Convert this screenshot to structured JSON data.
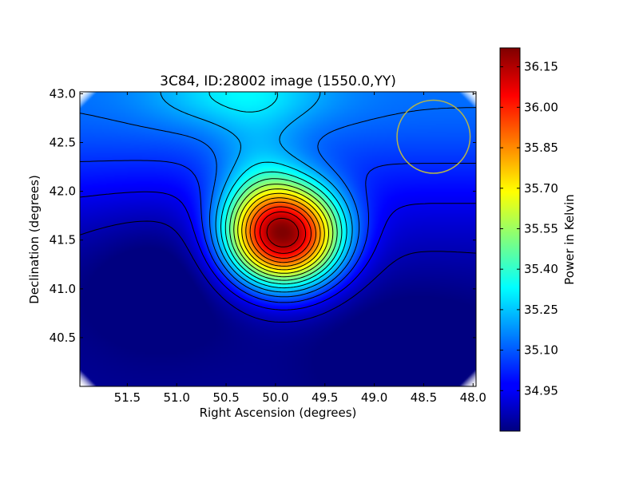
{
  "chart_data": {
    "type": "heatmap",
    "title": "3C84, ID:28002 image (1550.0,YY)",
    "xlabel": "Right Ascension (degrees)",
    "ylabel": "Declination (degrees)",
    "xlim": [
      51.98,
      47.97
    ],
    "ylim": [
      40.0,
      43.02
    ],
    "x_axis_inverted": true,
    "xticks": [
      51.5,
      51.0,
      50.5,
      50.0,
      49.5,
      49.0,
      48.5,
      48.0
    ],
    "xtick_labels": [
      "51.5",
      "51.0",
      "50.5",
      "50.0",
      "49.5",
      "49.0",
      "48.5",
      "48.0"
    ],
    "yticks": [
      40.5,
      41.0,
      41.5,
      42.0,
      42.5,
      43.0
    ],
    "ytick_labels": [
      "40.5",
      "41.0",
      "41.5",
      "42.0",
      "42.5",
      "43.0"
    ],
    "colormap": "jet",
    "colorbar": {
      "label": "Power in Kelvin",
      "range": [
        34.8,
        36.22
      ],
      "ticks": [
        34.95,
        35.1,
        35.25,
        35.4,
        35.55,
        35.7,
        35.85,
        36.0,
        36.15
      ],
      "tick_labels": [
        "34.95",
        "35.10",
        "35.25",
        "35.40",
        "35.55",
        "35.70",
        "35.85",
        "36.00",
        "36.15"
      ]
    },
    "peak": {
      "ra": 49.92,
      "dec": 41.54,
      "value": 36.2
    },
    "contours": true,
    "contour_color": "#000000",
    "beam_marker": {
      "ra": 48.4,
      "dec": 42.56,
      "radius_deg": 0.37,
      "color": "#b5b44a"
    }
  }
}
